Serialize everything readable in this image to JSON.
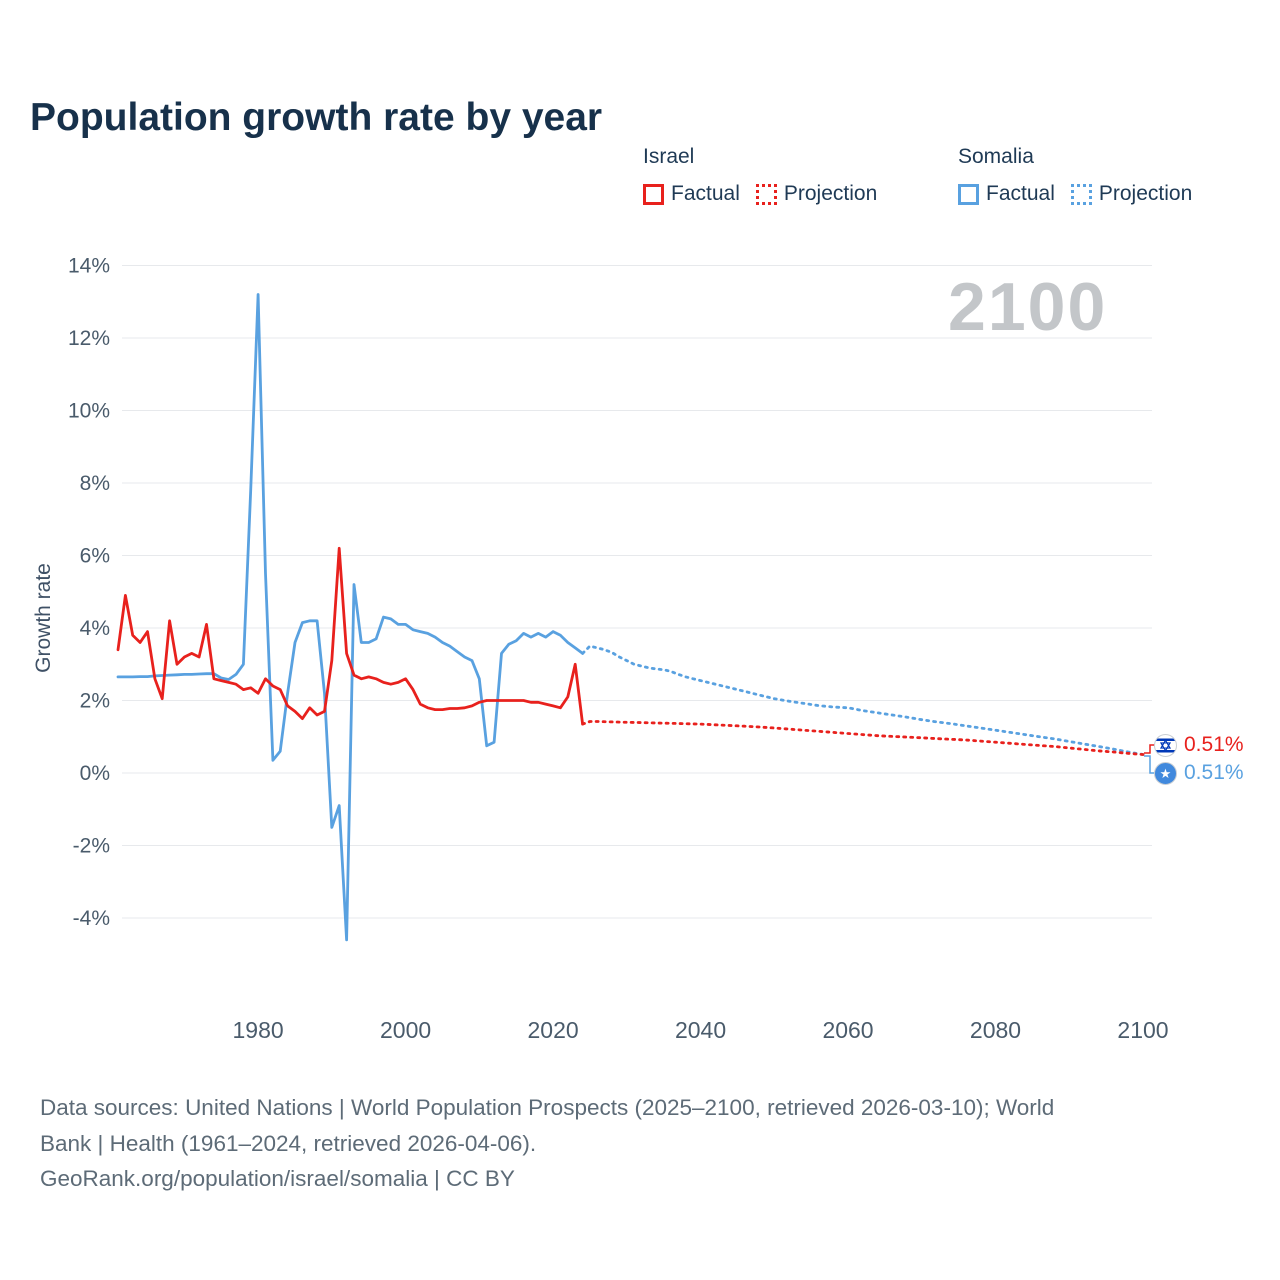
{
  "title": "Population growth rate by year",
  "watermark_year": "2100",
  "legend": {
    "groups": [
      {
        "country": "Israel",
        "items": [
          {
            "label": "Factual",
            "style": "solid",
            "color": "#e8211d"
          },
          {
            "label": "Projection",
            "style": "dotted",
            "color": "#e8211d"
          }
        ]
      },
      {
        "country": "Somalia",
        "items": [
          {
            "label": "Factual",
            "style": "solid",
            "color": "#59a1e0"
          },
          {
            "label": "Projection",
            "style": "dotted",
            "color": "#59a1e0"
          }
        ]
      }
    ]
  },
  "end_labels": [
    {
      "country": "Israel",
      "value": "0.51%",
      "color": "#e8211d",
      "flag_icon": "israel-flag-icon"
    },
    {
      "country": "Somalia",
      "value": "0.51%",
      "color": "#59a1e0",
      "flag_icon": "somalia-flag-icon"
    }
  ],
  "footer": {
    "lines": [
      "Data sources: United Nations | World Population Prospects (2025–2100, retrieved 2026-03-10); World",
      "Bank | Health (1961–2024, retrieved 2026-04-06).",
      "GeoRank.org/population/israel/somalia | CC BY"
    ]
  },
  "chart_data": {
    "type": "line",
    "title": "Population growth rate by year",
    "xlabel": "",
    "ylabel": "Growth rate",
    "xlim": [
      1961,
      2100
    ],
    "ylim": [
      -5,
      14.5
    ],
    "yticks": [
      14,
      12,
      10,
      8,
      6,
      4,
      2,
      0,
      -2,
      -4
    ],
    "ytick_suffix": "%",
    "xticks": [
      1980,
      2000,
      2020,
      2040,
      2060,
      2080,
      2100
    ],
    "grid": true,
    "legend_position": "top-right",
    "series": [
      {
        "name": "Somalia Factual",
        "color": "#59a1e0",
        "style": "solid",
        "points": [
          [
            1961,
            2.65
          ],
          [
            1962,
            2.65
          ],
          [
            1963,
            2.65
          ],
          [
            1964,
            2.66
          ],
          [
            1965,
            2.66
          ],
          [
            1966,
            2.68
          ],
          [
            1967,
            2.69
          ],
          [
            1968,
            2.7
          ],
          [
            1969,
            2.71
          ],
          [
            1970,
            2.72
          ],
          [
            1971,
            2.72
          ],
          [
            1972,
            2.73
          ],
          [
            1973,
            2.74
          ],
          [
            1974,
            2.74
          ],
          [
            1975,
            2.62
          ],
          [
            1976,
            2.58
          ],
          [
            1977,
            2.72
          ],
          [
            1978,
            3.0
          ],
          [
            1979,
            7.8
          ],
          [
            1980,
            13.2
          ],
          [
            1981,
            5.5
          ],
          [
            1982,
            0.35
          ],
          [
            1983,
            0.6
          ],
          [
            1984,
            2.2
          ],
          [
            1985,
            3.6
          ],
          [
            1986,
            4.15
          ],
          [
            1987,
            4.2
          ],
          [
            1988,
            4.2
          ],
          [
            1989,
            2.2
          ],
          [
            1990,
            -1.5
          ],
          [
            1991,
            -0.9
          ],
          [
            1992,
            -4.6
          ],
          [
            1993,
            5.2
          ],
          [
            1994,
            3.6
          ],
          [
            1995,
            3.6
          ],
          [
            1996,
            3.7
          ],
          [
            1997,
            4.3
          ],
          [
            1998,
            4.25
          ],
          [
            1999,
            4.1
          ],
          [
            2000,
            4.1
          ],
          [
            2001,
            3.95
          ],
          [
            2002,
            3.9
          ],
          [
            2003,
            3.85
          ],
          [
            2004,
            3.75
          ],
          [
            2005,
            3.6
          ],
          [
            2006,
            3.5
          ],
          [
            2007,
            3.35
          ],
          [
            2008,
            3.2
          ],
          [
            2009,
            3.1
          ],
          [
            2010,
            2.6
          ],
          [
            2011,
            0.75
          ],
          [
            2012,
            0.85
          ],
          [
            2013,
            3.3
          ],
          [
            2014,
            3.55
          ],
          [
            2015,
            3.65
          ],
          [
            2016,
            3.85
          ],
          [
            2017,
            3.75
          ],
          [
            2018,
            3.85
          ],
          [
            2019,
            3.75
          ],
          [
            2020,
            3.9
          ],
          [
            2021,
            3.8
          ],
          [
            2022,
            3.6
          ],
          [
            2023,
            3.45
          ],
          [
            2024,
            3.3
          ]
        ]
      },
      {
        "name": "Somalia Projection",
        "color": "#59a1e0",
        "style": "dotted",
        "points": [
          [
            2024,
            3.3
          ],
          [
            2025,
            3.5
          ],
          [
            2026,
            3.45
          ],
          [
            2027,
            3.4
          ],
          [
            2028,
            3.32
          ],
          [
            2029,
            3.2
          ],
          [
            2030,
            3.1
          ],
          [
            2031,
            3.0
          ],
          [
            2032,
            2.95
          ],
          [
            2033,
            2.9
          ],
          [
            2034,
            2.87
          ],
          [
            2035,
            2.85
          ],
          [
            2036,
            2.8
          ],
          [
            2037,
            2.72
          ],
          [
            2038,
            2.65
          ],
          [
            2039,
            2.6
          ],
          [
            2040,
            2.55
          ],
          [
            2042,
            2.45
          ],
          [
            2044,
            2.35
          ],
          [
            2046,
            2.25
          ],
          [
            2048,
            2.15
          ],
          [
            2050,
            2.05
          ],
          [
            2052,
            1.98
          ],
          [
            2054,
            1.92
          ],
          [
            2056,
            1.86
          ],
          [
            2058,
            1.82
          ],
          [
            2060,
            1.8
          ],
          [
            2062,
            1.72
          ],
          [
            2064,
            1.66
          ],
          [
            2066,
            1.6
          ],
          [
            2068,
            1.54
          ],
          [
            2070,
            1.47
          ],
          [
            2072,
            1.41
          ],
          [
            2074,
            1.36
          ],
          [
            2076,
            1.3
          ],
          [
            2078,
            1.24
          ],
          [
            2080,
            1.18
          ],
          [
            2082,
            1.12
          ],
          [
            2084,
            1.06
          ],
          [
            2086,
            1.0
          ],
          [
            2088,
            0.94
          ],
          [
            2090,
            0.87
          ],
          [
            2092,
            0.8
          ],
          [
            2094,
            0.73
          ],
          [
            2096,
            0.66
          ],
          [
            2098,
            0.58
          ],
          [
            2100,
            0.51
          ]
        ]
      },
      {
        "name": "Israel Factual",
        "color": "#e8211d",
        "style": "solid",
        "points": [
          [
            1961,
            3.4
          ],
          [
            1962,
            4.9
          ],
          [
            1963,
            3.8
          ],
          [
            1964,
            3.6
          ],
          [
            1965,
            3.9
          ],
          [
            1966,
            2.6
          ],
          [
            1967,
            2.05
          ],
          [
            1968,
            4.2
          ],
          [
            1969,
            3.0
          ],
          [
            1970,
            3.2
          ],
          [
            1971,
            3.3
          ],
          [
            1972,
            3.2
          ],
          [
            1973,
            4.1
          ],
          [
            1974,
            2.6
          ],
          [
            1975,
            2.55
          ],
          [
            1976,
            2.5
          ],
          [
            1977,
            2.45
          ],
          [
            1978,
            2.3
          ],
          [
            1979,
            2.35
          ],
          [
            1980,
            2.2
          ],
          [
            1981,
            2.6
          ],
          [
            1982,
            2.4
          ],
          [
            1983,
            2.3
          ],
          [
            1984,
            1.85
          ],
          [
            1985,
            1.7
          ],
          [
            1986,
            1.5
          ],
          [
            1987,
            1.8
          ],
          [
            1988,
            1.6
          ],
          [
            1989,
            1.7
          ],
          [
            1990,
            3.1
          ],
          [
            1991,
            6.2
          ],
          [
            1992,
            3.3
          ],
          [
            1993,
            2.7
          ],
          [
            1994,
            2.6
          ],
          [
            1995,
            2.65
          ],
          [
            1996,
            2.6
          ],
          [
            1997,
            2.5
          ],
          [
            1998,
            2.45
          ],
          [
            1999,
            2.5
          ],
          [
            2000,
            2.6
          ],
          [
            2001,
            2.3
          ],
          [
            2002,
            1.9
          ],
          [
            2003,
            1.8
          ],
          [
            2004,
            1.75
          ],
          [
            2005,
            1.75
          ],
          [
            2006,
            1.78
          ],
          [
            2007,
            1.78
          ],
          [
            2008,
            1.8
          ],
          [
            2009,
            1.85
          ],
          [
            2010,
            1.95
          ],
          [
            2011,
            2.0
          ],
          [
            2012,
            2.0
          ],
          [
            2013,
            2.0
          ],
          [
            2014,
            2.0
          ],
          [
            2015,
            2.0
          ],
          [
            2016,
            2.0
          ],
          [
            2017,
            1.95
          ],
          [
            2018,
            1.95
          ],
          [
            2019,
            1.9
          ],
          [
            2020,
            1.85
          ],
          [
            2021,
            1.8
          ],
          [
            2022,
            2.1
          ],
          [
            2023,
            3.0
          ],
          [
            2024,
            1.35
          ]
        ]
      },
      {
        "name": "Israel Projection",
        "color": "#e8211d",
        "style": "dotted",
        "points": [
          [
            2024,
            1.35
          ],
          [
            2025,
            1.42
          ],
          [
            2026,
            1.42
          ],
          [
            2028,
            1.41
          ],
          [
            2030,
            1.4
          ],
          [
            2032,
            1.39
          ],
          [
            2034,
            1.38
          ],
          [
            2036,
            1.37
          ],
          [
            2038,
            1.36
          ],
          [
            2040,
            1.35
          ],
          [
            2042,
            1.33
          ],
          [
            2044,
            1.31
          ],
          [
            2046,
            1.29
          ],
          [
            2048,
            1.27
          ],
          [
            2050,
            1.24
          ],
          [
            2052,
            1.21
          ],
          [
            2054,
            1.18
          ],
          [
            2056,
            1.15
          ],
          [
            2058,
            1.12
          ],
          [
            2060,
            1.09
          ],
          [
            2062,
            1.06
          ],
          [
            2064,
            1.03
          ],
          [
            2066,
            1.01
          ],
          [
            2068,
            0.99
          ],
          [
            2070,
            0.97
          ],
          [
            2072,
            0.95
          ],
          [
            2074,
            0.93
          ],
          [
            2076,
            0.91
          ],
          [
            2078,
            0.88
          ],
          [
            2080,
            0.85
          ],
          [
            2082,
            0.82
          ],
          [
            2084,
            0.79
          ],
          [
            2086,
            0.76
          ],
          [
            2088,
            0.73
          ],
          [
            2090,
            0.69
          ],
          [
            2092,
            0.65
          ],
          [
            2094,
            0.61
          ],
          [
            2096,
            0.58
          ],
          [
            2098,
            0.54
          ],
          [
            2100,
            0.51
          ]
        ]
      }
    ]
  }
}
